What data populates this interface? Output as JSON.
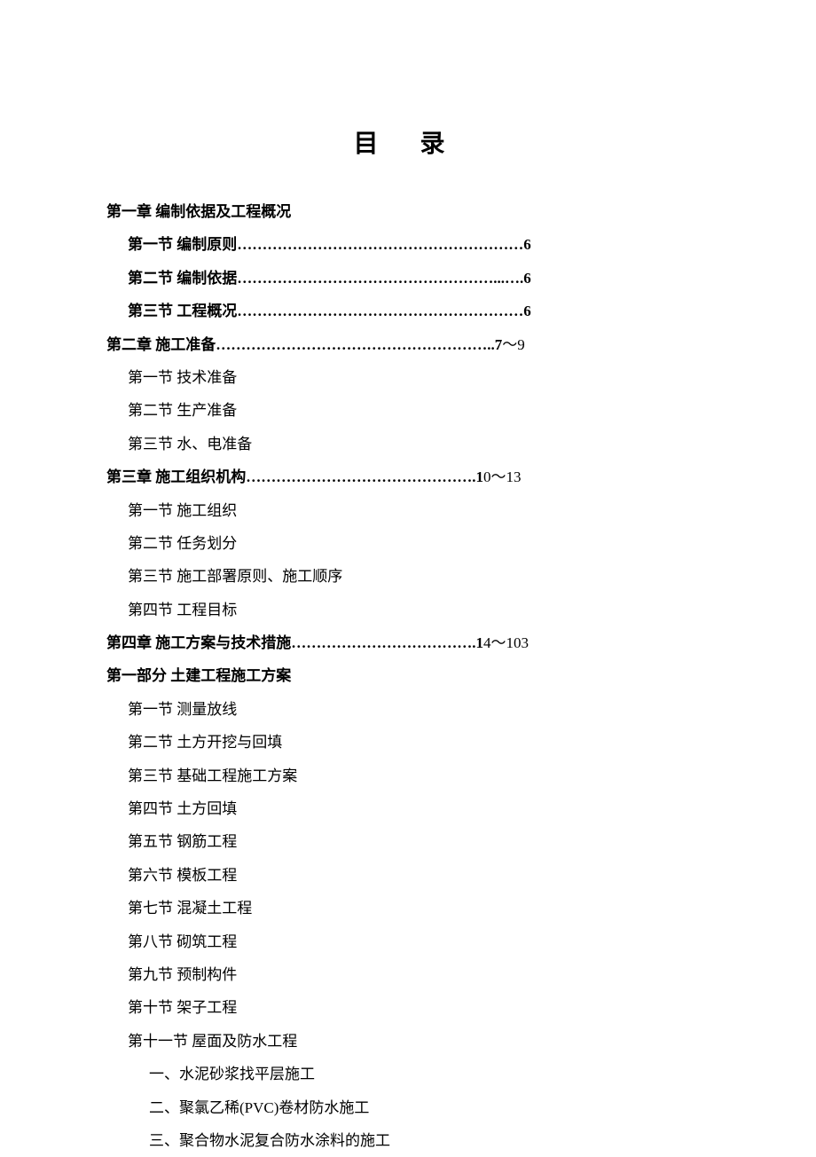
{
  "title": "目  录",
  "lines": [
    {
      "class": "chapter",
      "text": "第一章 编制依据及工程概况"
    },
    {
      "class": "section",
      "text": "第一节 编制原则",
      "dots": "…………………………………………………",
      "page": "6"
    },
    {
      "class": "section",
      "text": "第二节 编制依据",
      "dots": "……………………………………………...….",
      "page": "6"
    },
    {
      "class": "section",
      "text": "第三节 工程概况",
      "dots": "…………………………………………………",
      "page": "6"
    },
    {
      "class": "chapter",
      "text": "第二章 施工准备",
      "dots": "………………………………………………..",
      "page_bold": "7",
      "page_rest": "～9"
    },
    {
      "class": "subsection",
      "text": "第一节 技术准备"
    },
    {
      "class": "subsection",
      "text": "第二节 生产准备"
    },
    {
      "class": "subsection",
      "text": "第三节 水、电准备"
    },
    {
      "class": "chapter",
      "text": "第三章 施工组织机构",
      "dots": "……………………………………….",
      "page_bold": "1",
      "page_rest": "0～13"
    },
    {
      "class": "subsection",
      "text": "第一节 施工组织"
    },
    {
      "class": "subsection",
      "text": "第二节 任务划分"
    },
    {
      "class": "subsection",
      "text": "第三节 施工部署原则、施工顺序"
    },
    {
      "class": "subsection",
      "text": "第四节 工程目标"
    },
    {
      "class": "chapter",
      "text": "第四章 施工方案与技术措施",
      "dots": "……………………………….",
      "page_bold": "1",
      "page_rest": "4～103"
    },
    {
      "class": "part",
      "text": "第一部分 土建工程施工方案"
    },
    {
      "class": "subsection",
      "text": "第一节 测量放线"
    },
    {
      "class": "subsection",
      "text": "第二节 土方开挖与回填"
    },
    {
      "class": "subsection",
      "text": "第三节 基础工程施工方案"
    },
    {
      "class": "subsection",
      "text": "第四节 土方回填"
    },
    {
      "class": "subsection",
      "text": "第五节 钢筋工程"
    },
    {
      "class": "subsection",
      "text": "第六节 模板工程"
    },
    {
      "class": "subsection",
      "text": "第七节 混凝土工程"
    },
    {
      "class": "subsection",
      "text": "第八节 砌筑工程"
    },
    {
      "class": "subsection",
      "text": "第九节 预制构件"
    },
    {
      "class": "subsection",
      "text": "第十节 架子工程"
    },
    {
      "class": "subsection",
      "text": "第十一节 屋面及防水工程"
    },
    {
      "class": "subitem",
      "text": "一、水泥砂浆找平层施工"
    },
    {
      "class": "subitem",
      "text": "二、聚氯乙稀(PVC)卷材防水施工"
    },
    {
      "class": "subitem",
      "text": "三、聚合物水泥复合防水涂料的施工"
    }
  ]
}
